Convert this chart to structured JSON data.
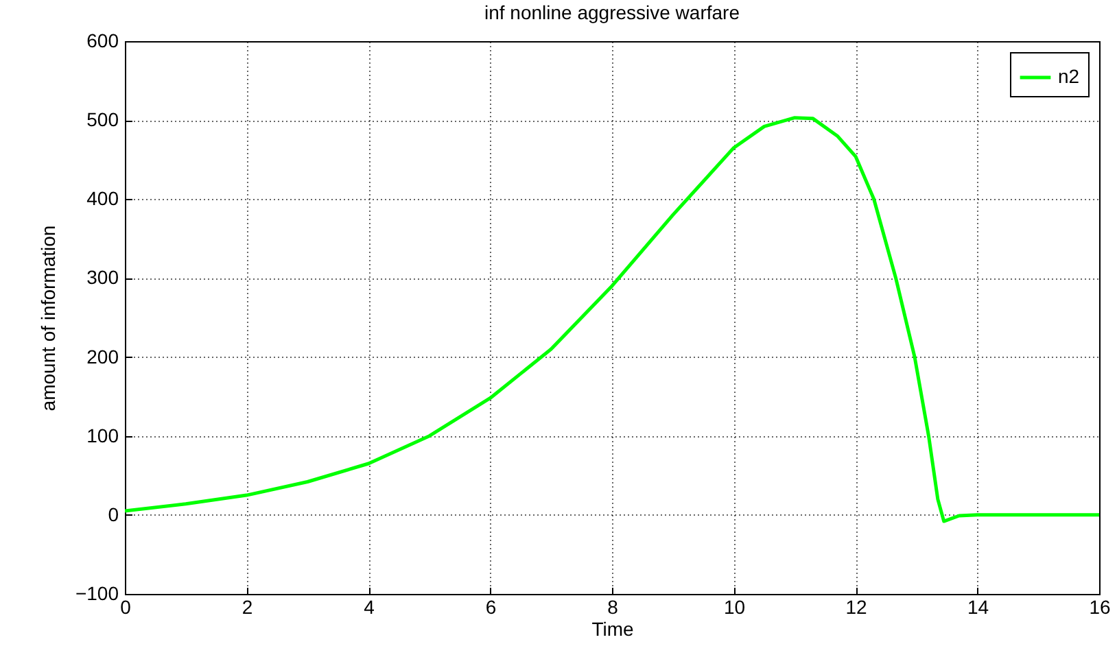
{
  "chart_data": {
    "type": "line",
    "title": "inf nonline aggressive warfare",
    "xlabel": "Time",
    "ylabel": "amount of information",
    "series": [
      {
        "name": "n2",
        "color": "#00ff00",
        "x": [
          0,
          1,
          2,
          3,
          4,
          5,
          6,
          7,
          8,
          9,
          10,
          10.5,
          11,
          11.3,
          11.7,
          12,
          12.3,
          12.66,
          12.97,
          13.2,
          13.35,
          13.45,
          13.7,
          14,
          16
        ],
        "values": [
          5,
          14,
          25,
          42,
          65,
          100,
          148,
          210,
          290,
          380,
          465,
          492,
          503,
          502,
          480,
          454,
          400,
          300,
          200,
          100,
          20,
          -8,
          -1,
          0,
          0
        ]
      }
    ],
    "xlim": [
      0,
      16
    ],
    "xticks": [
      0,
      2,
      4,
      6,
      8,
      10,
      12,
      14,
      16
    ],
    "ylim": [
      -100,
      600
    ],
    "yticks": [
      -100,
      0,
      100,
      200,
      300,
      400,
      500,
      600
    ],
    "grid": true,
    "legend": "top right",
    "marker": "none",
    "line_style": "solid"
  }
}
